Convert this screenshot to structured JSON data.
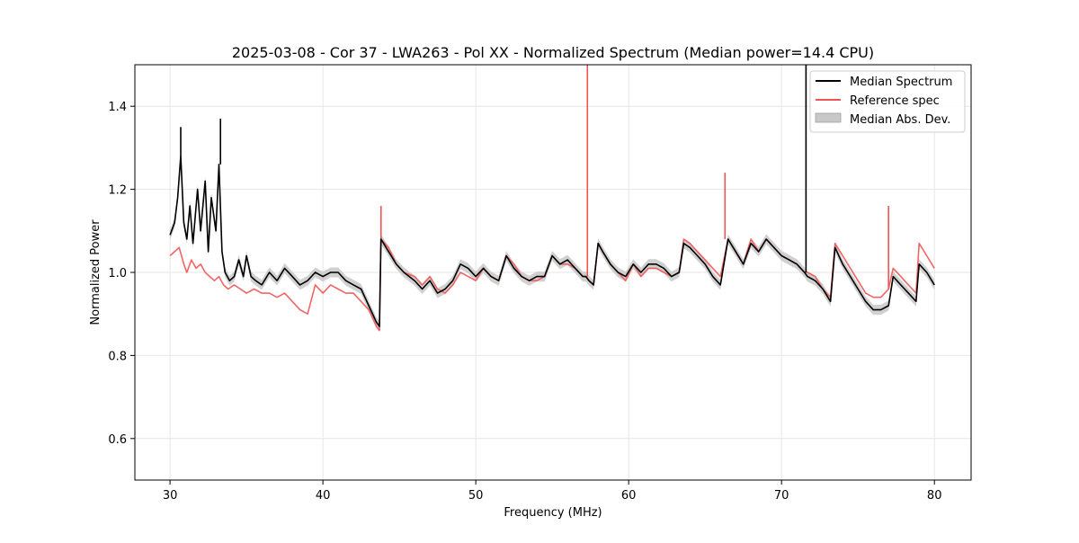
{
  "chart_data": {
    "type": "line",
    "title": "2025-03-08 - Cor 37 - LWA263 - Pol XX - Normalized Spectrum (Median power=14.4 CPU)",
    "xlabel": "Frequency (MHz)",
    "ylabel": "Normalized Power",
    "xlim": [
      27.7,
      82.4
    ],
    "ylim": [
      0.5,
      1.5
    ],
    "xticks": [
      30,
      40,
      50,
      60,
      70,
      80
    ],
    "yticks": [
      0.6,
      0.8,
      1.0,
      1.2,
      1.4
    ],
    "xtick_labels": [
      "30",
      "40",
      "50",
      "60",
      "70",
      "80"
    ],
    "ytick_labels": [
      "0.6",
      "0.8",
      "1.0",
      "1.2",
      "1.4"
    ],
    "grid": true,
    "legend_position": "top-right",
    "legend": [
      {
        "label": "Median Spectrum",
        "color": "#000000",
        "kind": "line"
      },
      {
        "label": "Reference spec",
        "color": "#f05454",
        "kind": "line"
      },
      {
        "label": "Median Abs. Dev.",
        "color": "#c8c8c8",
        "kind": "patch"
      }
    ],
    "series": [
      {
        "name": "Median Spectrum",
        "color": "#000000",
        "x": [
          30.0,
          30.3,
          30.5,
          30.7,
          30.9,
          31.1,
          31.3,
          31.5,
          31.8,
          32.0,
          32.3,
          32.5,
          32.7,
          33.0,
          33.2,
          33.4,
          33.6,
          33.9,
          34.2,
          34.5,
          34.8,
          35.0,
          35.3,
          35.6,
          36.0,
          36.5,
          37.0,
          37.5,
          38.0,
          38.5,
          39.0,
          39.5,
          40.0,
          40.5,
          41.0,
          41.5,
          42.0,
          42.5,
          43.0,
          43.5,
          43.7,
          43.8,
          44.3,
          44.8,
          45.3,
          46.0,
          46.5,
          47.0,
          47.5,
          48.0,
          48.5,
          49.0,
          49.5,
          50.0,
          50.5,
          51.0,
          51.5,
          52.0,
          52.5,
          53.0,
          53.5,
          54.0,
          54.5,
          55.0,
          55.5,
          56.0,
          56.5,
          57.0,
          57.2,
          57.4,
          57.7,
          58.0,
          58.3,
          58.8,
          59.3,
          59.8,
          60.3,
          60.8,
          61.3,
          61.8,
          62.3,
          62.8,
          63.3,
          63.6,
          64.0,
          64.5,
          65.0,
          65.5,
          66.0,
          66.5,
          67.0,
          67.5,
          68.0,
          68.5,
          69.0,
          69.5,
          70.0,
          70.5,
          71.0,
          71.5,
          71.7,
          72.2,
          72.7,
          73.2,
          73.5,
          74.0,
          74.5,
          75.0,
          75.5,
          76.0,
          76.5,
          77.0,
          77.3,
          77.8,
          78.3,
          78.8,
          79.0,
          79.5,
          80.0
        ],
        "y": [
          1.09,
          1.12,
          1.18,
          1.28,
          1.12,
          1.08,
          1.16,
          1.07,
          1.2,
          1.1,
          1.22,
          1.05,
          1.18,
          1.1,
          1.26,
          1.05,
          1.0,
          0.98,
          0.99,
          1.03,
          0.99,
          1.04,
          0.99,
          0.98,
          0.97,
          1.0,
          0.98,
          1.01,
          0.99,
          0.97,
          0.98,
          1.0,
          0.99,
          1.0,
          1.0,
          0.98,
          0.97,
          0.96,
          0.92,
          0.88,
          0.87,
          1.08,
          1.05,
          1.02,
          1.0,
          0.98,
          0.96,
          0.98,
          0.95,
          0.96,
          0.98,
          1.02,
          1.01,
          0.99,
          1.01,
          0.99,
          0.98,
          1.04,
          1.01,
          0.99,
          0.98,
          0.99,
          0.99,
          1.04,
          1.02,
          1.03,
          1.01,
          0.99,
          0.99,
          0.98,
          0.97,
          1.07,
          1.05,
          1.02,
          1.0,
          0.99,
          1.02,
          1.0,
          1.02,
          1.02,
          1.01,
          0.99,
          1.0,
          1.07,
          1.06,
          1.04,
          1.02,
          0.99,
          0.97,
          1.08,
          1.05,
          1.02,
          1.07,
          1.05,
          1.08,
          1.06,
          1.04,
          1.03,
          1.02,
          1.0,
          0.99,
          0.98,
          0.96,
          0.93,
          1.06,
          1.02,
          0.99,
          0.96,
          0.93,
          0.91,
          0.91,
          0.92,
          0.99,
          0.97,
          0.95,
          0.93,
          1.02,
          1.0,
          0.97
        ]
      },
      {
        "name": "Reference spec",
        "color": "#f05454",
        "x": [
          30.0,
          30.3,
          30.6,
          30.9,
          31.1,
          31.4,
          31.7,
          32.0,
          32.3,
          32.6,
          32.9,
          33.2,
          33.5,
          33.8,
          34.2,
          34.6,
          35.0,
          35.5,
          36.0,
          36.5,
          37.0,
          37.5,
          38.0,
          38.5,
          39.0,
          39.5,
          40.0,
          40.5,
          41.0,
          41.5,
          42.0,
          42.5,
          43.0,
          43.5,
          43.7,
          43.8,
          44.3,
          44.8,
          45.3,
          46.0,
          46.5,
          47.0,
          47.5,
          48.0,
          48.5,
          49.0,
          49.5,
          50.0,
          50.5,
          51.0,
          51.5,
          52.0,
          52.5,
          53.0,
          53.5,
          54.0,
          54.5,
          55.0,
          55.5,
          56.0,
          56.5,
          57.0,
          57.2,
          57.4,
          57.7,
          58.0,
          58.3,
          58.8,
          59.3,
          59.8,
          60.3,
          60.8,
          61.3,
          61.8,
          62.3,
          62.8,
          63.3,
          63.6,
          64.0,
          64.5,
          65.0,
          65.5,
          66.0,
          66.5,
          67.0,
          67.5,
          68.0,
          68.5,
          69.0,
          69.5,
          70.0,
          70.5,
          71.0,
          71.5,
          71.7,
          72.2,
          72.7,
          73.2,
          73.5,
          74.0,
          74.5,
          75.0,
          75.5,
          76.0,
          76.5,
          77.0,
          77.3,
          77.8,
          78.3,
          78.8,
          79.0,
          79.5,
          80.0
        ],
        "y": [
          1.04,
          1.05,
          1.06,
          1.02,
          1.0,
          1.03,
          1.01,
          1.02,
          1.0,
          0.99,
          0.98,
          0.99,
          0.97,
          0.96,
          0.97,
          0.96,
          0.95,
          0.96,
          0.95,
          0.95,
          0.94,
          0.95,
          0.93,
          0.91,
          0.9,
          0.97,
          0.95,
          0.97,
          0.96,
          0.95,
          0.95,
          0.93,
          0.91,
          0.87,
          0.86,
          1.08,
          1.06,
          1.02,
          1.0,
          0.99,
          0.97,
          0.99,
          0.96,
          0.95,
          0.97,
          1.0,
          0.99,
          0.98,
          1.01,
          0.99,
          0.98,
          1.04,
          1.02,
          0.99,
          0.98,
          0.98,
          0.99,
          1.04,
          1.02,
          1.02,
          1.01,
          0.99,
          0.99,
          0.98,
          0.97,
          1.07,
          1.05,
          1.02,
          1.0,
          0.98,
          1.02,
          0.99,
          1.01,
          1.01,
          1.0,
          0.99,
          1.0,
          1.08,
          1.07,
          1.05,
          1.03,
          1.01,
          0.99,
          1.08,
          1.05,
          1.02,
          1.08,
          1.05,
          1.08,
          1.06,
          1.04,
          1.03,
          1.02,
          1.0,
          1.0,
          0.99,
          0.96,
          0.94,
          1.07,
          1.04,
          1.01,
          0.98,
          0.95,
          0.94,
          0.94,
          0.96,
          1.01,
          0.99,
          0.97,
          0.95,
          1.07,
          1.04,
          1.01
        ]
      }
    ],
    "spikes": [
      {
        "series": "Reference spec",
        "x": 57.3,
        "y": 1.5
      },
      {
        "series": "Median Spectrum",
        "x": 71.6,
        "y": 1.5
      },
      {
        "series": "Reference spec",
        "x": 66.3,
        "y": 1.24
      },
      {
        "series": "Reference spec",
        "x": 43.8,
        "y": 1.16
      },
      {
        "series": "Reference spec",
        "x": 77.0,
        "y": 1.16
      },
      {
        "series": "Median Spectrum",
        "x": 30.7,
        "y": 1.35
      },
      {
        "series": "Median Spectrum",
        "x": 33.3,
        "y": 1.37
      }
    ],
    "mad_band": {
      "name": "Median Abs. Dev.",
      "color": "#c8c8c8",
      "half_width": 0.012
    }
  }
}
